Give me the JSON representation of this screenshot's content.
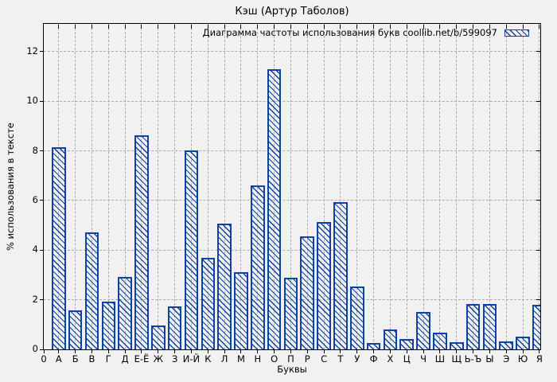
{
  "chart_data": {
    "type": "bar",
    "title": "Кэш (Артур Таболов)",
    "legend": "Диаграмма частоты использования букв coollib.net/b/599097",
    "legend_position": "top-right-inside",
    "xlabel": "Буквы",
    "ylabel": "% использования в тексте",
    "x_origin_label": "0",
    "categories": [
      "А",
      "Б",
      "В",
      "Г",
      "Д",
      "Е-Ё",
      "Ж",
      "З",
      "И-Й",
      "К",
      "Л",
      "М",
      "Н",
      "О",
      "П",
      "Р",
      "С",
      "Т",
      "У",
      "Ф",
      "Х",
      "Ц",
      "Ч",
      "Ш",
      "Щ",
      "Ь-Ъ",
      "Ы",
      "Э",
      "Ю",
      "Я"
    ],
    "values": [
      8.15,
      1.57,
      4.72,
      1.92,
      2.93,
      8.63,
      0.96,
      1.73,
      8.01,
      3.68,
      5.08,
      3.1,
      6.61,
      11.28,
      2.9,
      4.56,
      5.13,
      5.93,
      2.53,
      0.26,
      0.8,
      0.43,
      1.51,
      0.66,
      0.28,
      1.84,
      1.84,
      0.31,
      0.52,
      1.81
    ],
    "yticks": [
      0,
      2,
      4,
      6,
      8,
      10,
      12
    ],
    "ylim": [
      0,
      13.1
    ],
    "grid": true,
    "bar_style": "hatched-diagonal",
    "colors": {
      "bar": "#0d41a5",
      "grid": "#ababab",
      "axis": "#000000",
      "background": "#f1f1f1",
      "text": "#000000"
    }
  }
}
